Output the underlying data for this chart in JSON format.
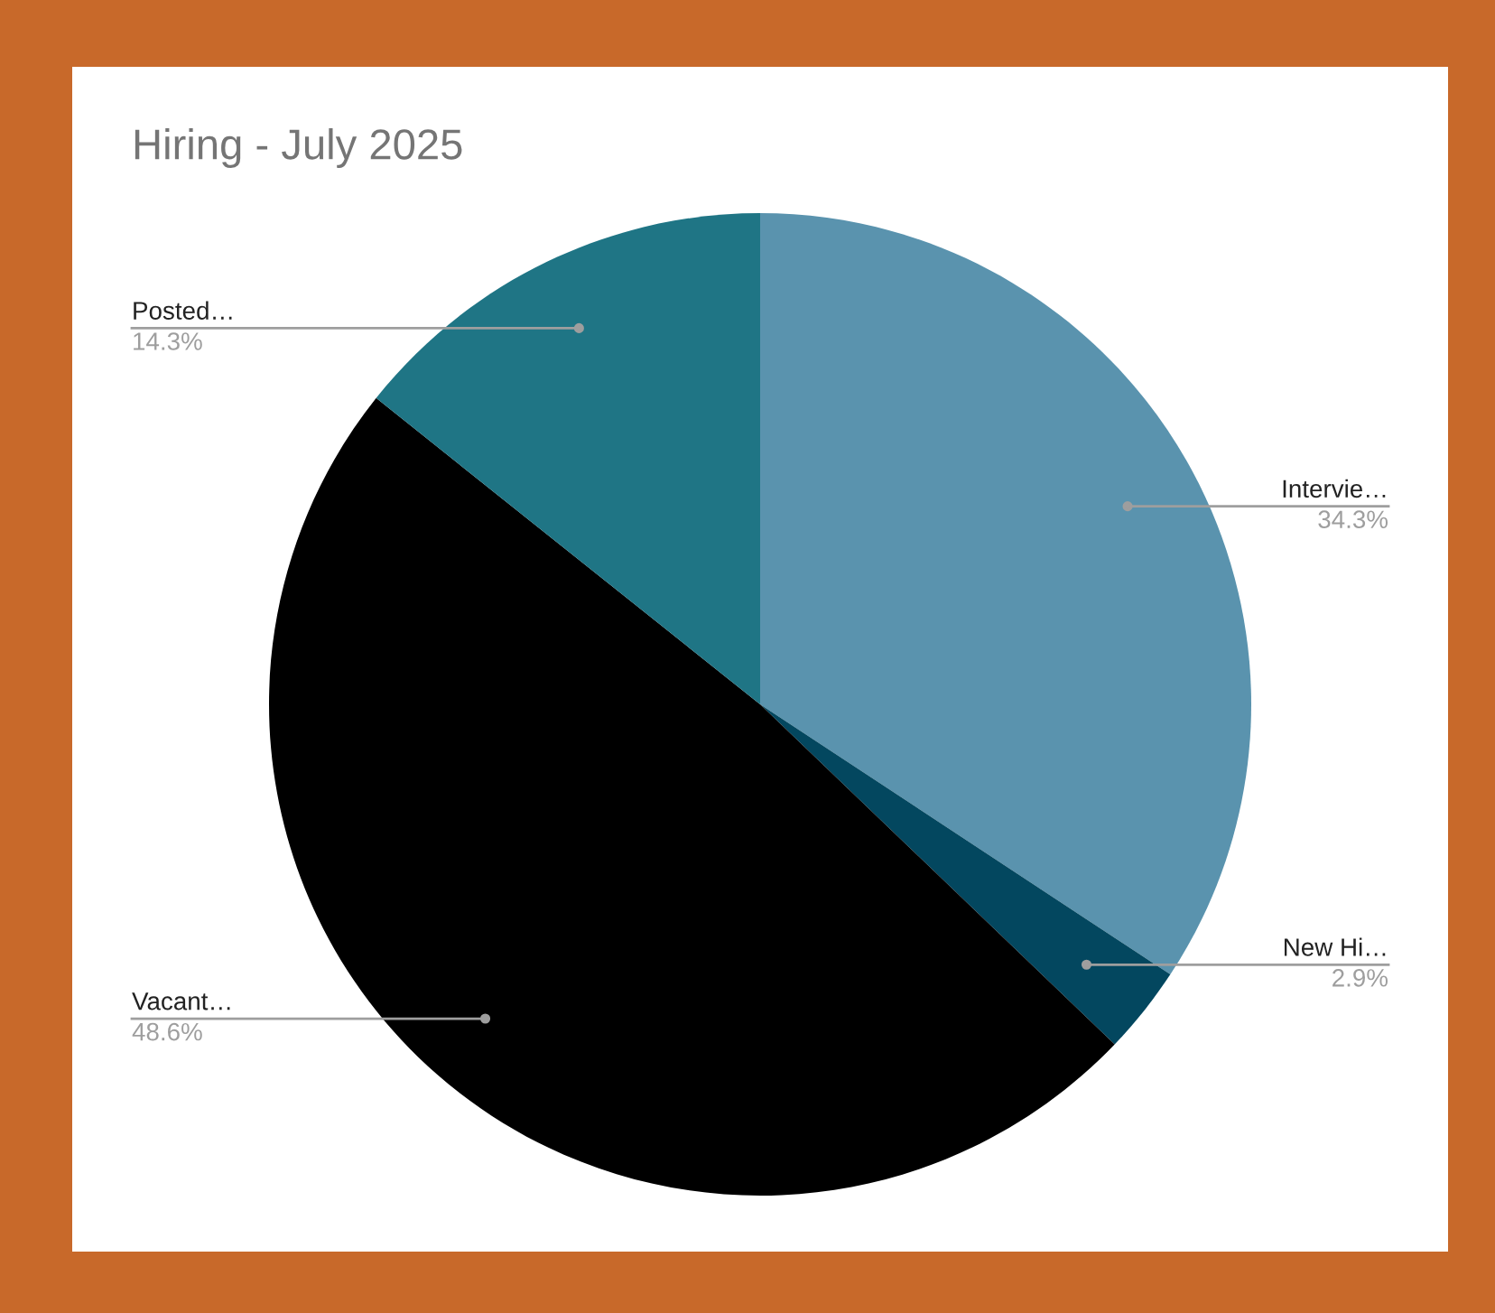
{
  "chart_data": {
    "type": "pie",
    "title": "Hiring - July 2025",
    "categories": [
      "Intervie…",
      "New Hi…",
      "Vacant…",
      "Posted…"
    ],
    "values": [
      34.3,
      2.9,
      48.6,
      14.3
    ],
    "colors": [
      "#5a93ae",
      "#03475f",
      "#000000",
      "#1f7585"
    ],
    "value_labels": [
      "34.3%",
      "2.9%",
      "48.6%",
      "14.3%"
    ],
    "legend": false
  }
}
